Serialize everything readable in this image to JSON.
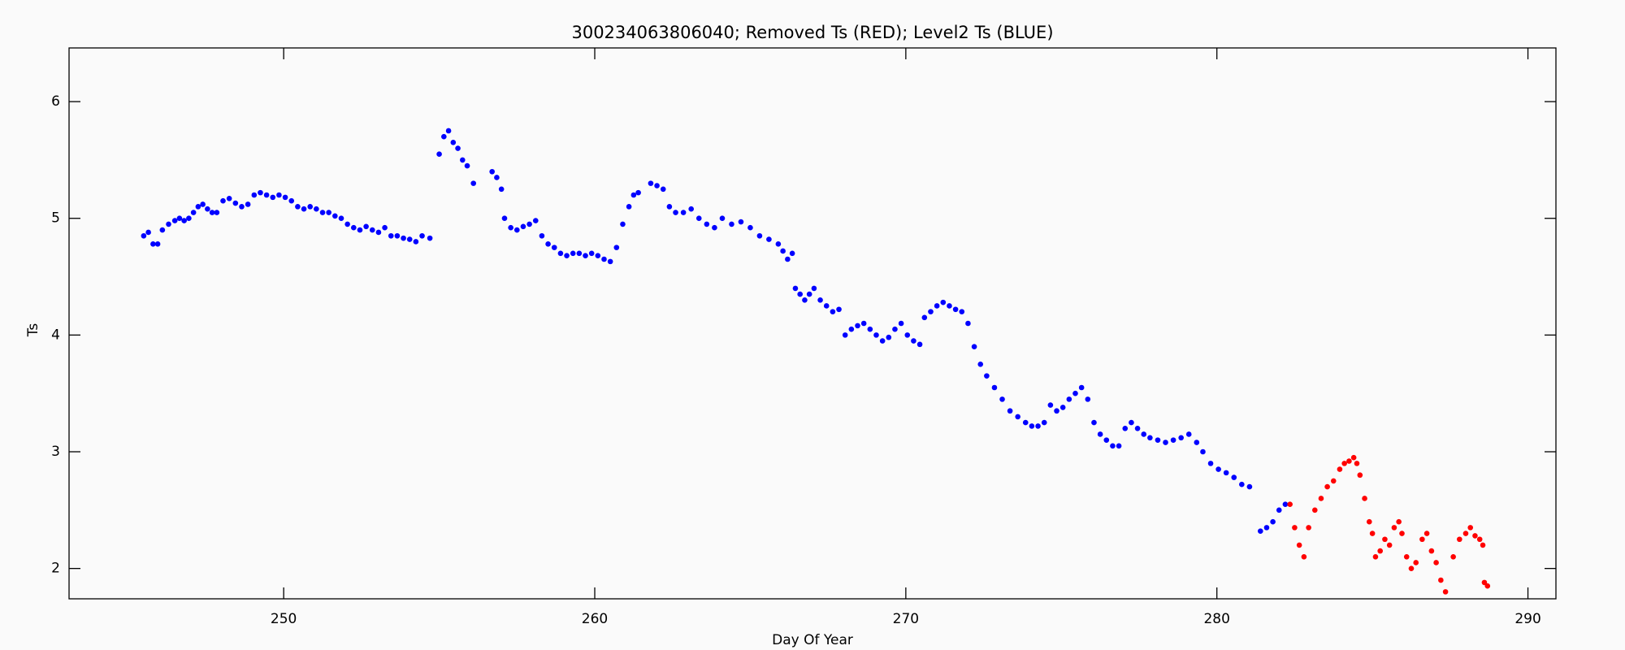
{
  "chart_data": {
    "type": "scatter",
    "title": "300234063806040; Removed Ts (RED); Level2 Ts (BLUE)",
    "x_label": "Day Of Year",
    "y_label": "Ts",
    "xlim": [
      243.1,
      290.9
    ],
    "ylim": [
      1.74,
      6.46
    ],
    "xticks": [
      250,
      260,
      270,
      280,
      290
    ],
    "yticks": [
      2,
      3,
      4,
      5,
      6
    ],
    "series": [
      {
        "color": "#0000ff",
        "x": [
          245.5,
          245.65,
          245.8,
          245.95,
          246.1,
          246.3,
          246.5,
          246.65,
          246.8,
          246.95,
          247.1,
          247.25,
          247.4,
          247.55,
          247.7,
          247.85,
          248.05,
          248.25,
          248.45,
          248.65,
          248.85,
          249.05,
          249.25,
          249.45,
          249.65,
          249.85,
          250.05,
          250.25,
          250.45,
          250.65,
          250.85,
          251.05,
          251.25,
          251.45,
          251.65,
          251.85,
          252.05,
          252.25,
          252.45,
          252.65,
          252.85,
          253.05,
          253.25,
          253.45,
          253.65,
          253.85,
          254.05,
          254.25,
          254.45,
          254.7,
          255.0,
          255.15,
          255.3,
          255.45,
          255.6,
          255.75,
          255.9,
          256.1,
          256.7,
          256.85,
          257.0,
          257.1,
          257.3,
          257.5,
          257.7,
          257.9,
          258.1,
          258.3,
          258.5,
          258.7,
          258.9,
          259.1,
          259.3,
          259.5,
          259.7,
          259.9,
          260.1,
          260.3,
          260.5,
          260.7,
          260.9,
          261.1,
          261.25,
          261.4,
          261.8,
          262.0,
          262.2,
          262.4,
          262.6,
          262.85,
          263.1,
          263.35,
          263.6,
          263.85,
          264.1,
          264.4,
          264.7,
          265.0,
          265.3,
          265.6,
          265.9,
          266.05,
          266.2,
          266.35,
          266.45,
          266.6,
          266.75,
          266.9,
          267.05,
          267.25,
          267.45,
          267.65,
          267.85,
          268.05,
          268.25,
          268.45,
          268.65,
          268.85,
          269.05,
          269.25,
          269.45,
          269.65,
          269.85,
          270.05,
          270.25,
          270.45,
          270.6,
          270.8,
          271.0,
          271.2,
          271.4,
          271.6,
          271.8,
          272.0,
          272.2,
          272.4,
          272.6,
          272.85,
          273.1,
          273.35,
          273.6,
          273.85,
          274.05,
          274.25,
          274.45,
          274.65,
          274.85,
          275.05,
          275.25,
          275.45,
          275.65,
          275.85,
          276.05,
          276.25,
          276.45,
          276.65,
          276.85,
          277.05,
          277.25,
          277.45,
          277.65,
          277.85,
          278.1,
          278.35,
          278.6,
          278.85,
          279.1,
          279.35,
          279.55,
          279.8,
          280.05,
          280.3,
          280.55,
          280.8,
          281.05,
          281.4,
          281.6,
          281.8,
          282.0,
          282.2
        ],
        "values": [
          4.85,
          4.88,
          4.78,
          4.78,
          4.9,
          4.95,
          4.98,
          5.0,
          4.98,
          5.0,
          5.05,
          5.1,
          5.12,
          5.08,
          5.05,
          5.05,
          5.15,
          5.17,
          5.13,
          5.1,
          5.12,
          5.2,
          5.22,
          5.2,
          5.18,
          5.2,
          5.18,
          5.15,
          5.1,
          5.08,
          5.1,
          5.08,
          5.05,
          5.05,
          5.02,
          5.0,
          4.95,
          4.92,
          4.9,
          4.93,
          4.9,
          4.88,
          4.92,
          4.85,
          4.85,
          4.83,
          4.82,
          4.8,
          4.85,
          4.83,
          5.55,
          5.7,
          5.75,
          5.65,
          5.6,
          5.5,
          5.45,
          5.3,
          5.4,
          5.35,
          5.25,
          5.0,
          4.92,
          4.9,
          4.93,
          4.95,
          4.98,
          4.85,
          4.78,
          4.75,
          4.7,
          4.68,
          4.7,
          4.7,
          4.68,
          4.7,
          4.68,
          4.65,
          4.63,
          4.75,
          4.95,
          5.1,
          5.2,
          5.22,
          5.3,
          5.28,
          5.25,
          5.1,
          5.05,
          5.05,
          5.08,
          5.0,
          4.95,
          4.92,
          5.0,
          4.95,
          4.97,
          4.92,
          4.85,
          4.82,
          4.78,
          4.72,
          4.65,
          4.7,
          4.4,
          4.35,
          4.3,
          4.35,
          4.4,
          4.3,
          4.25,
          4.2,
          4.22,
          4.0,
          4.05,
          4.08,
          4.1,
          4.05,
          4.0,
          3.95,
          3.98,
          4.05,
          4.1,
          4.0,
          3.95,
          3.92,
          4.15,
          4.2,
          4.25,
          4.28,
          4.25,
          4.22,
          4.2,
          4.1,
          3.9,
          3.75,
          3.65,
          3.55,
          3.45,
          3.35,
          3.3,
          3.25,
          3.22,
          3.22,
          3.25,
          3.4,
          3.35,
          3.38,
          3.45,
          3.5,
          3.55,
          3.45,
          3.25,
          3.15,
          3.1,
          3.05,
          3.05,
          3.2,
          3.25,
          3.2,
          3.15,
          3.12,
          3.1,
          3.08,
          3.1,
          3.12,
          3.15,
          3.08,
          3.0,
          2.9,
          2.85,
          2.82,
          2.78,
          2.72,
          2.7,
          2.32,
          2.35,
          2.4,
          2.5,
          2.55
        ]
      },
      {
        "color": "#ff0000",
        "x": [
          282.35,
          282.5,
          282.65,
          282.8,
          282.95,
          283.15,
          283.35,
          283.55,
          283.75,
          283.95,
          284.1,
          284.25,
          284.4,
          284.5,
          284.6,
          284.75,
          284.9,
          285.0,
          285.1,
          285.25,
          285.4,
          285.55,
          285.7,
          285.85,
          285.95,
          286.1,
          286.25,
          286.4,
          286.6,
          286.75,
          286.9,
          287.05,
          287.2,
          287.35,
          287.6,
          287.8,
          288.0,
          288.15,
          288.3,
          288.45,
          288.55,
          288.6,
          288.7
        ],
        "values": [
          2.55,
          2.35,
          2.2,
          2.1,
          2.35,
          2.5,
          2.6,
          2.7,
          2.75,
          2.85,
          2.9,
          2.92,
          2.95,
          2.9,
          2.8,
          2.6,
          2.4,
          2.3,
          2.1,
          2.15,
          2.25,
          2.2,
          2.35,
          2.4,
          2.3,
          2.1,
          2.0,
          2.05,
          2.25,
          2.3,
          2.15,
          2.05,
          1.9,
          1.8,
          2.1,
          2.25,
          2.3,
          2.35,
          2.28,
          2.25,
          2.2,
          1.88,
          1.85
        ]
      }
    ]
  }
}
